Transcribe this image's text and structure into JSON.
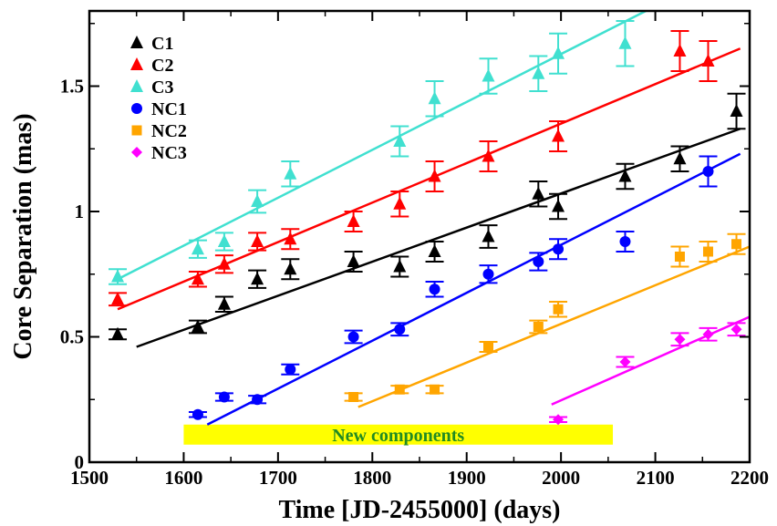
{
  "chart_data": {
    "type": "scatter",
    "xlabel": "Time [JD-2455000] (days)",
    "ylabel": "Core Separation (mas)",
    "xlim": [
      1500,
      2200
    ],
    "ylim": [
      0,
      1.8
    ],
    "xticks": [
      1500,
      1600,
      1700,
      1800,
      1900,
      2000,
      2100,
      2200
    ],
    "xtick_labels": [
      "1500",
      "1600",
      "1700",
      "1800",
      "1900",
      "2000",
      "2100",
      "2200"
    ],
    "yticks": [
      0,
      0.5,
      1,
      1.5
    ],
    "ytick_labels": [
      "0",
      "0.5",
      "1",
      "1.5"
    ],
    "legend_position": "top-left",
    "annotation": {
      "text": "New components",
      "x_range": [
        1600,
        2055
      ],
      "y_range": [
        0.07,
        0.15
      ],
      "fill": "#ffff00",
      "text_color": "#228b22"
    },
    "series": [
      {
        "name": "C1",
        "marker": "triangle",
        "color": "#000000",
        "points": [
          [
            1530,
            0.51,
            0.02
          ],
          [
            1615,
            0.54,
            0.025
          ],
          [
            1643,
            0.63,
            0.03
          ],
          [
            1678,
            0.73,
            0.035
          ],
          [
            1713,
            0.77,
            0.04
          ],
          [
            1780,
            0.8,
            0.04
          ],
          [
            1829,
            0.78,
            0.04
          ],
          [
            1866,
            0.84,
            0.04
          ],
          [
            1923,
            0.9,
            0.045
          ],
          [
            1976,
            1.07,
            0.05
          ],
          [
            1997,
            1.02,
            0.05
          ],
          [
            2068,
            1.14,
            0.05
          ],
          [
            2126,
            1.21,
            0.05
          ],
          [
            2186,
            1.4,
            0.07
          ]
        ],
        "fit": [
          [
            1550,
            0.46
          ],
          [
            2190,
            1.33
          ]
        ]
      },
      {
        "name": "C2",
        "marker": "triangle",
        "color": "#ff0000",
        "points": [
          [
            1530,
            0.65,
            0.025
          ],
          [
            1615,
            0.73,
            0.03
          ],
          [
            1643,
            0.79,
            0.035
          ],
          [
            1678,
            0.88,
            0.035
          ],
          [
            1713,
            0.89,
            0.04
          ],
          [
            1780,
            0.96,
            0.04
          ],
          [
            1829,
            1.03,
            0.05
          ],
          [
            1866,
            1.14,
            0.06
          ],
          [
            1923,
            1.22,
            0.06
          ],
          [
            1997,
            1.3,
            0.06
          ],
          [
            2126,
            1.64,
            0.08
          ],
          [
            2156,
            1.6,
            0.08
          ]
        ],
        "fit": [
          [
            1530,
            0.61
          ],
          [
            2190,
            1.65
          ]
        ]
      },
      {
        "name": "C3",
        "marker": "triangle",
        "color": "#40e0d0",
        "points": [
          [
            1530,
            0.74,
            0.03
          ],
          [
            1615,
            0.85,
            0.035
          ],
          [
            1643,
            0.88,
            0.035
          ],
          [
            1678,
            1.04,
            0.045
          ],
          [
            1713,
            1.15,
            0.05
          ],
          [
            1829,
            1.28,
            0.06
          ],
          [
            1866,
            1.45,
            0.07
          ],
          [
            1923,
            1.54,
            0.07
          ],
          [
            1976,
            1.55,
            0.07
          ],
          [
            1997,
            1.63,
            0.08
          ],
          [
            2068,
            1.67,
            0.09
          ]
        ],
        "fit": [
          [
            1530,
            0.73
          ],
          [
            2090,
            1.8
          ]
        ]
      },
      {
        "name": "NC1",
        "marker": "circle",
        "color": "#0000ff",
        "points": [
          [
            1615,
            0.19,
            0.01
          ],
          [
            1643,
            0.26,
            0.015
          ],
          [
            1678,
            0.25,
            0.015
          ],
          [
            1713,
            0.37,
            0.02
          ],
          [
            1780,
            0.5,
            0.025
          ],
          [
            1829,
            0.53,
            0.025
          ],
          [
            1866,
            0.69,
            0.03
          ],
          [
            1923,
            0.75,
            0.035
          ],
          [
            1976,
            0.8,
            0.035
          ],
          [
            1997,
            0.85,
            0.04
          ],
          [
            2068,
            0.88,
            0.04
          ],
          [
            2156,
            1.16,
            0.06
          ]
        ],
        "fit": [
          [
            1625,
            0.15
          ],
          [
            2190,
            1.23
          ]
        ]
      },
      {
        "name": "NC2",
        "marker": "square",
        "color": "#ffa500",
        "points": [
          [
            1780,
            0.26,
            0.015
          ],
          [
            1829,
            0.29,
            0.015
          ],
          [
            1866,
            0.29,
            0.015
          ],
          [
            1923,
            0.46,
            0.02
          ],
          [
            1976,
            0.54,
            0.025
          ],
          [
            1997,
            0.61,
            0.03
          ],
          [
            2126,
            0.82,
            0.04
          ],
          [
            2156,
            0.84,
            0.04
          ],
          [
            2186,
            0.87,
            0.04
          ]
        ],
        "fit": [
          [
            1785,
            0.22
          ],
          [
            2200,
            0.86
          ]
        ]
      },
      {
        "name": "NC3",
        "marker": "diamond",
        "color": "#ff00ff",
        "points": [
          [
            1997,
            0.17,
            0.01
          ],
          [
            2068,
            0.4,
            0.02
          ],
          [
            2126,
            0.49,
            0.025
          ],
          [
            2156,
            0.51,
            0.025
          ],
          [
            2186,
            0.53,
            0.025
          ]
        ],
        "fit": [
          [
            1990,
            0.23
          ],
          [
            2200,
            0.58
          ]
        ]
      }
    ]
  }
}
